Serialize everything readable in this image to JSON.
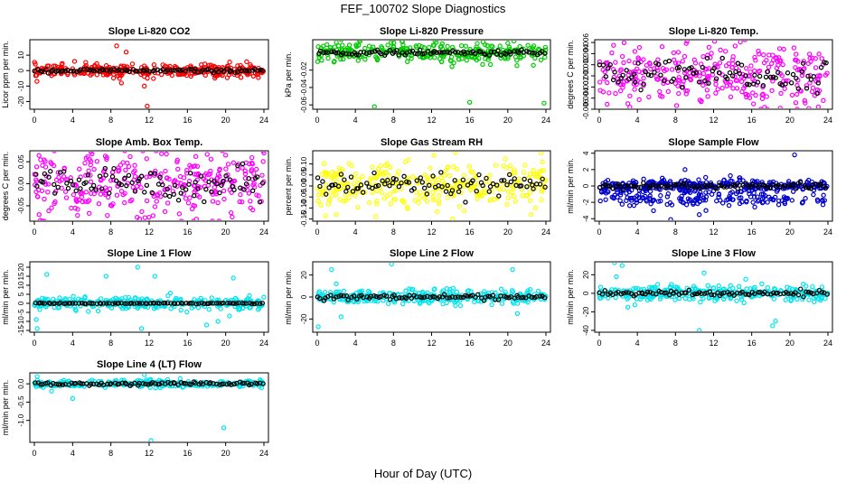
{
  "title": "FEF_100702  Slope Diagnostics",
  "xlabel": "Hour of Day (UTC)",
  "chart_data": [
    {
      "type": "scatter",
      "title": "Slope Li-820 CO2",
      "ylabel": "Licor ppm per min.",
      "xlim": [
        0,
        24
      ],
      "xticks": [
        0,
        4,
        8,
        12,
        16,
        20,
        24
      ],
      "ylim": [
        -25,
        20
      ],
      "yticks": [
        -20,
        -10,
        0,
        10
      ],
      "ytick_labels": [
        "-20",
        "-10",
        "0",
        "10"
      ],
      "color": "#ff0000",
      "main_center": 0,
      "main_spread": 2.5,
      "black_spread": 0.8,
      "outliers": [
        [
          8.6,
          16
        ],
        [
          8.9,
          -5
        ],
        [
          9.1,
          -8
        ],
        [
          11.8,
          -23
        ],
        [
          11.5,
          -10
        ],
        [
          9.6,
          12
        ],
        [
          4.2,
          6
        ]
      ]
    },
    {
      "type": "scatter",
      "title": "Slope Li-820 Pressure",
      "ylabel": "kPa per min.",
      "xlim": [
        0,
        24
      ],
      "xticks": [
        0,
        4,
        8,
        12,
        16,
        20,
        24
      ],
      "ylim": [
        -0.065,
        0.015
      ],
      "yticks": [
        -0.06,
        -0.04,
        -0.02
      ],
      "ytick_labels": [
        "-0.06",
        "-0.04",
        "-0.02"
      ],
      "color": "#00cc00",
      "main_center": 0.0,
      "main_spread": 0.007,
      "black_spread": 0.002,
      "outliers": [
        [
          6,
          -0.062
        ],
        [
          16,
          -0.057
        ],
        [
          23.8,
          -0.058
        ],
        [
          2,
          0.012
        ],
        [
          12.5,
          0.012
        ],
        [
          20,
          0.011
        ]
      ]
    },
    {
      "type": "scatter",
      "title": "Slope Li-820 Temp.",
      "ylabel": "degrees C per min.",
      "xlim": [
        0,
        24
      ],
      "xticks": [
        0,
        4,
        8,
        12,
        16,
        20,
        24
      ],
      "ylim": [
        -0.006,
        0.0065
      ],
      "yticks": [
        -0.006,
        -0.004,
        -0.002,
        0.0,
        0.002,
        0.004,
        0.006
      ],
      "ytick_labels": [
        "-0.006",
        "-0.004",
        "-0.002",
        "0.000",
        "0.002",
        "0.004",
        "0.006"
      ],
      "color": "#ff00ff",
      "main_center": 0,
      "main_spread": 0.0035,
      "black_spread": 0.002,
      "outliers": [
        [
          12.1,
          0.0062
        ],
        [
          1.5,
          0.0055
        ],
        [
          19,
          -0.0058
        ],
        [
          3,
          -0.005
        ]
      ]
    },
    {
      "type": "scatter",
      "title": "Slope Amb. Box Temp.",
      "ylabel": "degrees C per min.",
      "xlim": [
        0,
        24
      ],
      "xticks": [
        0,
        4,
        8,
        12,
        16,
        20,
        24
      ],
      "ylim": [
        -0.085,
        0.075
      ],
      "yticks": [
        -0.05,
        0.0,
        0.05
      ],
      "ytick_labels": [
        "-0.05",
        "0.00",
        "0.05"
      ],
      "color": "#ff00ff",
      "main_center": 0,
      "main_spread": 0.045,
      "black_spread": 0.025,
      "outliers": [
        [
          11,
          -0.08
        ],
        [
          20,
          0.065
        ],
        [
          24,
          0.07
        ],
        [
          0.5,
          -0.07
        ]
      ]
    },
    {
      "type": "scatter",
      "title": "Slope Gas Stream RH",
      "ylabel": "percent per min.",
      "xlim": [
        0,
        24
      ],
      "xticks": [
        0,
        4,
        8,
        12,
        16,
        20,
        24
      ],
      "ylim": [
        -0.16,
        0.16
      ],
      "yticks": [
        -0.15,
        -0.1,
        -0.05,
        0.0,
        0.05,
        0.1
      ],
      "ytick_labels": [
        "-0.15",
        "-0.10",
        "-0.05",
        "0.00",
        "0.05",
        "0.10"
      ],
      "color": "#ffff00",
      "main_center": 0,
      "main_spread": 0.07,
      "black_spread": 0.035,
      "outliers": [
        [
          14.2,
          -0.15
        ],
        [
          23.5,
          0.15
        ],
        [
          2,
          -0.13
        ]
      ]
    },
    {
      "type": "scatter",
      "title": "Slope Sample Flow",
      "ylabel": "ml/min per min.",
      "xlim": [
        0,
        24
      ],
      "xticks": [
        0,
        4,
        8,
        12,
        16,
        20,
        24
      ],
      "ylim": [
        -4.3,
        4.3
      ],
      "yticks": [
        -4,
        -2,
        0,
        2,
        4
      ],
      "ytick_labels": [
        "-4",
        "-2",
        "0",
        "2",
        "4"
      ],
      "color": "#0000cc",
      "main_center": 0,
      "main_spread": 0.5,
      "black_spread": 0.3,
      "band": {
        "center": -1.6,
        "spread": 0.6
      },
      "outliers": [
        [
          20.5,
          3.8
        ],
        [
          7.5,
          -4.1
        ],
        [
          10.5,
          -3.5
        ],
        [
          9,
          2.0
        ],
        [
          11.2,
          -3.0
        ]
      ]
    },
    {
      "type": "scatter",
      "title": "Slope Line 1 Flow",
      "ylabel": "ml/min per min.",
      "xlim": [
        0,
        24
      ],
      "xticks": [
        0,
        4,
        8,
        12,
        16,
        20,
        24
      ],
      "ylim": [
        -16,
        23
      ],
      "yticks": [
        -15,
        -10,
        -5,
        0,
        5,
        10,
        15,
        20
      ],
      "ytick_labels": [
        "-15",
        "-10",
        "-5",
        "0",
        "5",
        "10",
        "15",
        "20"
      ],
      "color": "#00e5ee",
      "main_center": 0,
      "main_spread": 2,
      "black_spread": 0.2,
      "outliers": [
        [
          0.2,
          -9
        ],
        [
          0.3,
          -14
        ],
        [
          1.3,
          16
        ],
        [
          7.5,
          15
        ],
        [
          10.8,
          20
        ],
        [
          11.2,
          -14
        ],
        [
          12.6,
          15
        ],
        [
          18,
          -12
        ],
        [
          20.4,
          -7
        ],
        [
          20.8,
          14
        ],
        [
          19.2,
          -10
        ]
      ]
    },
    {
      "type": "scatter",
      "title": "Slope Line 2 Flow",
      "ylabel": "ml/min per min.",
      "xlim": [
        0,
        24
      ],
      "xticks": [
        0,
        4,
        8,
        12,
        16,
        20,
        24
      ],
      "ylim": [
        -32,
        32
      ],
      "yticks": [
        -20,
        0,
        20
      ],
      "ytick_labels": [
        "-20",
        "0",
        "20"
      ],
      "color": "#00e5ee",
      "main_center": 0,
      "main_spread": 4,
      "black_spread": 1.5,
      "outliers": [
        [
          0.1,
          -27
        ],
        [
          1.5,
          25
        ],
        [
          7.8,
          30
        ],
        [
          20.5,
          25
        ],
        [
          21,
          -15
        ],
        [
          2,
          12
        ],
        [
          2.5,
          -18
        ]
      ]
    },
    {
      "type": "scatter",
      "title": "Slope Line 3 Flow",
      "ylabel": "ml/min per min.",
      "xlim": [
        0,
        24
      ],
      "xticks": [
        0,
        4,
        8,
        12,
        16,
        20,
        24
      ],
      "ylim": [
        -42,
        34
      ],
      "yticks": [
        -40,
        -20,
        0,
        20
      ],
      "ytick_labels": [
        "-40",
        "-20",
        "0",
        "20"
      ],
      "color": "#00e5ee",
      "main_center": 0,
      "main_spread": 5,
      "black_spread": 2,
      "outliers": [
        [
          1.6,
          33
        ],
        [
          2.4,
          30
        ],
        [
          1.8,
          18
        ],
        [
          10.5,
          -40
        ],
        [
          18.5,
          -30
        ],
        [
          18.2,
          -35
        ],
        [
          11,
          22
        ],
        [
          3,
          -15
        ]
      ]
    },
    {
      "type": "scatter",
      "title": "Slope Line 4 (LT) Flow",
      "ylabel": "ml/min per min.",
      "xlim": [
        0,
        24
      ],
      "xticks": [
        0,
        4,
        8,
        12,
        16,
        20,
        24
      ],
      "ylim": [
        -1.6,
        0.3
      ],
      "yticks": [
        -1.0,
        -0.5,
        0.0
      ],
      "ytick_labels": [
        "-1.0",
        "-0.5",
        "0.0"
      ],
      "color": "#00e5ee",
      "main_center": 0,
      "main_spread": 0.06,
      "black_spread": 0.03,
      "outliers": [
        [
          12.2,
          -1.55
        ],
        [
          19.8,
          -1.2
        ],
        [
          4,
          -0.4
        ],
        [
          0.3,
          0.2
        ],
        [
          11.5,
          0.25
        ],
        [
          1.8,
          -0.2
        ]
      ]
    }
  ]
}
